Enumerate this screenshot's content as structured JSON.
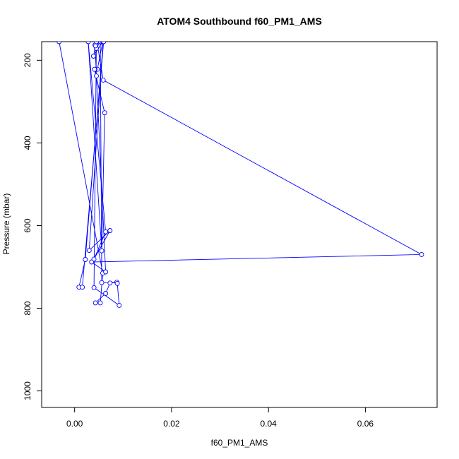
{
  "chart_data": {
    "type": "line",
    "title": "ATOM4 Southbound f60_PM1_AMS",
    "xlabel": "f60_PM1_AMS",
    "ylabel": "Pressure (mbar)",
    "xlim": [
      -0.0068,
      0.0748
    ],
    "ylim": [
      1040,
      155
    ],
    "y_reversed": true,
    "grid": false,
    "legend": "none",
    "x_ticks": [
      0.0,
      0.02,
      0.04,
      0.06
    ],
    "x_tick_labels": [
      "0.00",
      "0.02",
      "0.04",
      "0.06"
    ],
    "y_ticks": [
      200,
      400,
      600,
      800,
      1000
    ],
    "y_tick_labels": [
      "200",
      "400",
      "600",
      "800",
      "1000"
    ],
    "series": [
      {
        "color": "#0000ff",
        "marker": "open-circle",
        "points": [
          {
            "x": -0.0032,
            "y": 155
          },
          {
            "x": 0.0058,
            "y": 715
          },
          {
            "x": 0.0053,
            "y": 787
          },
          {
            "x": 0.0043,
            "y": 787
          },
          {
            "x": 0.0064,
            "y": 764
          },
          {
            "x": 0.0073,
            "y": 739
          },
          {
            "x": 0.0087,
            "y": 737
          },
          {
            "x": 0.0056,
            "y": 738
          },
          {
            "x": 0.0053,
            "y": 155
          },
          {
            "x": 0.0045,
            "y": 171
          },
          {
            "x": 0.0042,
            "y": 163
          },
          {
            "x": 0.0064,
            "y": 712
          },
          {
            "x": 0.0035,
            "y": 688
          },
          {
            "x": 0.0716,
            "y": 670
          },
          {
            "x": 0.0059,
            "y": 248
          },
          {
            "x": 0.0046,
            "y": 155
          },
          {
            "x": 0.0043,
            "y": 165
          },
          {
            "x": 0.0039,
            "y": 190
          },
          {
            "x": 0.0058,
            "y": 155
          },
          {
            "x": 0.0047,
            "y": 222
          },
          {
            "x": 0.0042,
            "y": 222
          },
          {
            "x": 0.0045,
            "y": 238
          },
          {
            "x": 0.0041,
            "y": 222
          },
          {
            "x": 0.0062,
            "y": 327
          },
          {
            "x": 0.0056,
            "y": 661
          },
          {
            "x": 0.0028,
            "y": 155
          },
          {
            "x": 0.0064,
            "y": 615
          },
          {
            "x": 0.004,
            "y": 681
          },
          {
            "x": 0.0073,
            "y": 612
          },
          {
            "x": 0.003,
            "y": 660
          },
          {
            "x": 0.0059,
            "y": 155
          },
          {
            "x": 0.0022,
            "y": 682
          },
          {
            "x": 0.0009,
            "y": 749
          },
          {
            "x": 0.0016,
            "y": 749
          },
          {
            "x": 0.006,
            "y": 155
          },
          {
            "x": 0.0045,
            "y": 155
          },
          {
            "x": 0.004,
            "y": 750
          },
          {
            "x": 0.0092,
            "y": 793
          },
          {
            "x": 0.0088,
            "y": 740
          }
        ]
      }
    ]
  }
}
